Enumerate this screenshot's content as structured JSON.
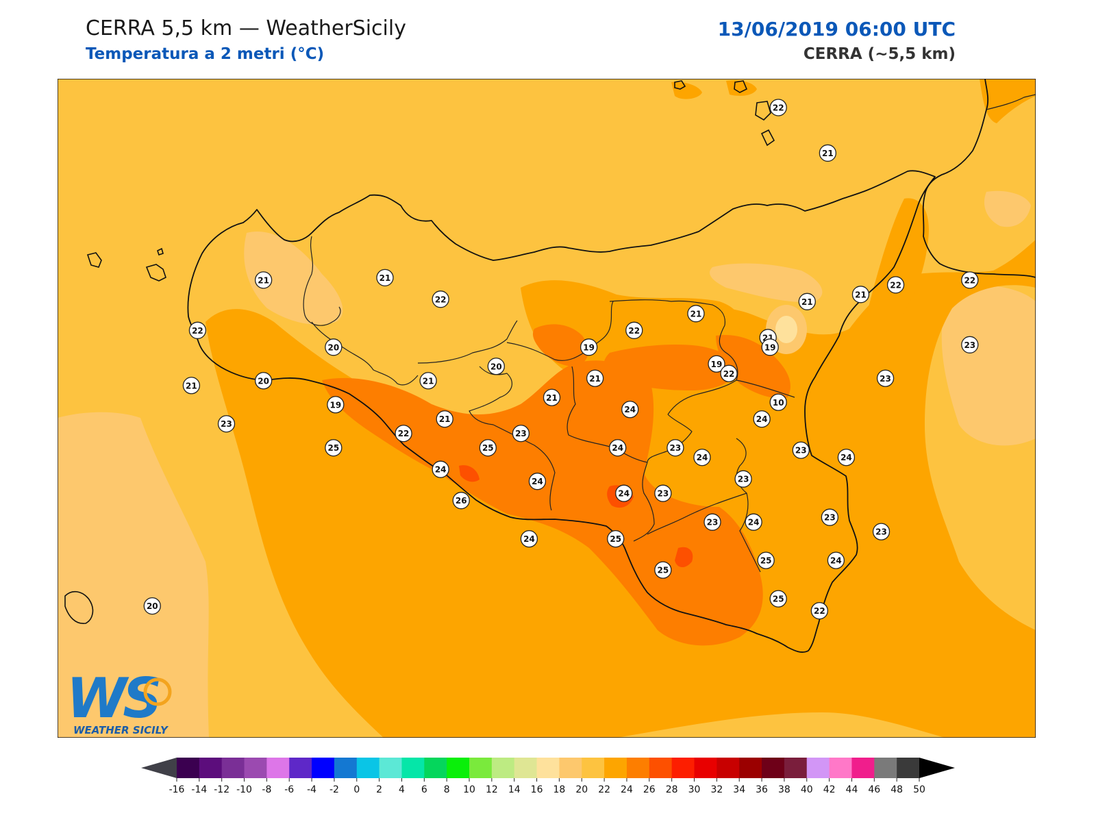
{
  "header": {
    "title": "CERRA 5,5 km — WeatherSicily",
    "subtitle": "Temperatura a 2 metri (°C)",
    "datetime": "13/06/2019 06:00 UTC",
    "model": "CERRA (~5,5 km)"
  },
  "logo": {
    "letters": "WS",
    "name": "WEATHER SICILY"
  },
  "colors": {
    "bg_sea": "#fdc340",
    "c18": "#fdc86d",
    "c20": "#fdc340",
    "c22": "#fda500",
    "c24": "#fd7e00",
    "c26": "#fd5000",
    "coast": "#111111"
  },
  "colorbar": {
    "ticks": [
      "-16",
      "-14",
      "-12",
      "-10",
      "-8",
      "-6",
      "-4",
      "-2",
      "0",
      "2",
      "4",
      "6",
      "8",
      "10",
      "12",
      "14",
      "16",
      "18",
      "20",
      "22",
      "24",
      "26",
      "28",
      "30",
      "32",
      "34",
      "36",
      "38",
      "40",
      "42",
      "44",
      "46",
      "48",
      "50"
    ],
    "colors": [
      "#3b0050",
      "#5c0d7c",
      "#7a2f96",
      "#9b4ab0",
      "#dd76e8",
      "#5e28c8",
      "#0000ff",
      "#1478d2",
      "#0ac5e6",
      "#5ce8d6",
      "#05e6a8",
      "#05d65c",
      "#0aef0a",
      "#7aea3c",
      "#bdeb82",
      "#dfe694",
      "#fee19c",
      "#fdc86d",
      "#fdc340",
      "#fda500",
      "#fd7e00",
      "#fd5000",
      "#fd1e00",
      "#e80000",
      "#c80000",
      "#9b0000",
      "#6e0018",
      "#7a1e3c",
      "#d296f6",
      "#ff78c8",
      "#f01e8c",
      "#7a7a7a",
      "#3a3a3a"
    ],
    "under_color": "#404048",
    "over_color": "#000000"
  },
  "stations": [
    {
      "value": "22",
      "lon": 15.0,
      "lat": 38.98
    },
    {
      "value": "21",
      "lon": 15.24,
      "lat": 38.79
    },
    {
      "value": "21",
      "lon": 12.5,
      "lat": 38.26
    },
    {
      "value": "21",
      "lon": 13.09,
      "lat": 38.27
    },
    {
      "value": "22",
      "lon": 13.36,
      "lat": 38.18
    },
    {
      "value": "22",
      "lon": 12.18,
      "lat": 38.05
    },
    {
      "value": "20",
      "lon": 12.84,
      "lat": 37.98
    },
    {
      "value": "20",
      "lon": 12.5,
      "lat": 37.84
    },
    {
      "value": "21",
      "lon": 12.15,
      "lat": 37.82
    },
    {
      "value": "19",
      "lon": 14.08,
      "lat": 37.98
    },
    {
      "value": "20",
      "lon": 13.63,
      "lat": 37.9
    },
    {
      "value": "21",
      "lon": 13.3,
      "lat": 37.84
    },
    {
      "value": "21",
      "lon": 14.11,
      "lat": 37.85
    },
    {
      "value": "22",
      "lon": 14.3,
      "lat": 38.05
    },
    {
      "value": "21",
      "lon": 14.6,
      "lat": 38.12
    },
    {
      "value": "21",
      "lon": 14.95,
      "lat": 38.02
    },
    {
      "value": "21",
      "lon": 15.4,
      "lat": 38.2
    },
    {
      "value": "22",
      "lon": 15.57,
      "lat": 38.24
    },
    {
      "value": "22",
      "lon": 15.93,
      "lat": 38.26
    },
    {
      "value": "21",
      "lon": 15.14,
      "lat": 38.17
    },
    {
      "value": "23",
      "lon": 15.93,
      "lat": 37.99
    },
    {
      "value": "19",
      "lon": 14.7,
      "lat": 37.91
    },
    {
      "value": "19",
      "lon": 14.96,
      "lat": 37.98
    },
    {
      "value": "22",
      "lon": 14.76,
      "lat": 37.87
    },
    {
      "value": "23",
      "lon": 15.52,
      "lat": 37.85
    },
    {
      "value": "10",
      "lon": 15.0,
      "lat": 37.75
    },
    {
      "value": "19",
      "lon": 12.85,
      "lat": 37.74
    },
    {
      "value": "21",
      "lon": 13.9,
      "lat": 37.77
    },
    {
      "value": "24",
      "lon": 14.28,
      "lat": 37.72
    },
    {
      "value": "24",
      "lon": 14.92,
      "lat": 37.68
    },
    {
      "value": "21",
      "lon": 13.38,
      "lat": 37.68
    },
    {
      "value": "23",
      "lon": 12.32,
      "lat": 37.66
    },
    {
      "value": "22",
      "lon": 13.18,
      "lat": 37.62
    },
    {
      "value": "23",
      "lon": 13.75,
      "lat": 37.62
    },
    {
      "value": "25",
      "lon": 12.84,
      "lat": 37.56
    },
    {
      "value": "25",
      "lon": 13.59,
      "lat": 37.56
    },
    {
      "value": "24",
      "lon": 14.22,
      "lat": 37.56
    },
    {
      "value": "23",
      "lon": 14.5,
      "lat": 37.56
    },
    {
      "value": "24",
      "lon": 14.63,
      "lat": 37.52
    },
    {
      "value": "23",
      "lon": 15.11,
      "lat": 37.55
    },
    {
      "value": "24",
      "lon": 15.33,
      "lat": 37.52
    },
    {
      "value": "24",
      "lon": 13.36,
      "lat": 37.47
    },
    {
      "value": "23",
      "lon": 14.83,
      "lat": 37.43
    },
    {
      "value": "24",
      "lon": 13.83,
      "lat": 37.42
    },
    {
      "value": "24",
      "lon": 14.25,
      "lat": 37.37
    },
    {
      "value": "23",
      "lon": 14.44,
      "lat": 37.37
    },
    {
      "value": "26",
      "lon": 13.46,
      "lat": 37.34
    },
    {
      "value": "23",
      "lon": 15.25,
      "lat": 37.27
    },
    {
      "value": "23",
      "lon": 14.68,
      "lat": 37.25
    },
    {
      "value": "24",
      "lon": 14.88,
      "lat": 37.25
    },
    {
      "value": "23",
      "lon": 15.5,
      "lat": 37.21
    },
    {
      "value": "24",
      "lon": 13.79,
      "lat": 37.18
    },
    {
      "value": "25",
      "lon": 14.21,
      "lat": 37.18
    },
    {
      "value": "25",
      "lon": 14.94,
      "lat": 37.09
    },
    {
      "value": "24",
      "lon": 15.28,
      "lat": 37.09
    },
    {
      "value": "25",
      "lon": 14.44,
      "lat": 37.05
    },
    {
      "value": "25",
      "lon": 15.0,
      "lat": 36.93
    },
    {
      "value": "22",
      "lon": 15.2,
      "lat": 36.88
    },
    {
      "value": "20",
      "lon": 11.96,
      "lat": 36.9
    }
  ]
}
